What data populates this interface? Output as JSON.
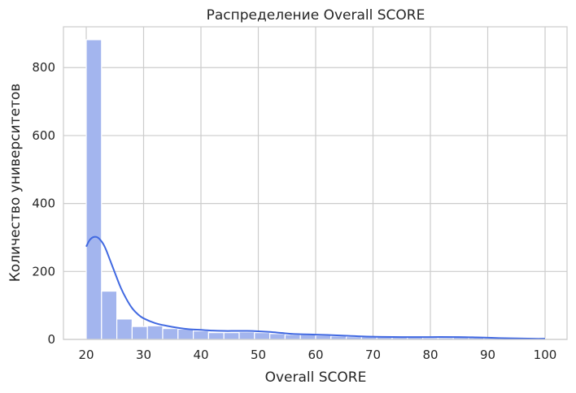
{
  "chart_data": {
    "type": "bar",
    "subtype": "histogram-with-kde",
    "title": "Распределение Overall SCORE",
    "xlabel": "Overall SCORE",
    "ylabel": "Количество университетов",
    "xlim": [
      20,
      100
    ],
    "ylim": [
      0,
      920
    ],
    "grid": true,
    "x_ticks": [
      20,
      30,
      40,
      50,
      60,
      70,
      80,
      90,
      100
    ],
    "y_ticks": [
      0,
      200,
      400,
      600,
      800
    ],
    "bin_width": 2.667,
    "bins": [
      {
        "start": 20.0,
        "end": 22.667,
        "count": 882
      },
      {
        "start": 22.667,
        "end": 25.333,
        "count": 142
      },
      {
        "start": 25.333,
        "end": 28.0,
        "count": 60
      },
      {
        "start": 28.0,
        "end": 30.667,
        "count": 38
      },
      {
        "start": 30.667,
        "end": 33.333,
        "count": 40
      },
      {
        "start": 33.333,
        "end": 36.0,
        "count": 32
      },
      {
        "start": 36.0,
        "end": 38.667,
        "count": 30
      },
      {
        "start": 38.667,
        "end": 41.333,
        "count": 25
      },
      {
        "start": 41.333,
        "end": 44.0,
        "count": 20
      },
      {
        "start": 44.0,
        "end": 46.667,
        "count": 20
      },
      {
        "start": 46.667,
        "end": 49.333,
        "count": 22
      },
      {
        "start": 49.333,
        "end": 52.0,
        "count": 20
      },
      {
        "start": 52.0,
        "end": 54.667,
        "count": 17
      },
      {
        "start": 54.667,
        "end": 57.333,
        "count": 14
      },
      {
        "start": 57.333,
        "end": 60.0,
        "count": 14
      },
      {
        "start": 60.0,
        "end": 62.667,
        "count": 12
      },
      {
        "start": 62.667,
        "end": 65.333,
        "count": 10
      },
      {
        "start": 65.333,
        "end": 68.0,
        "count": 8
      },
      {
        "start": 68.0,
        "end": 70.667,
        "count": 8
      },
      {
        "start": 70.667,
        "end": 73.333,
        "count": 7
      },
      {
        "start": 73.333,
        "end": 76.0,
        "count": 6
      },
      {
        "start": 76.0,
        "end": 78.667,
        "count": 6
      },
      {
        "start": 78.667,
        "end": 81.333,
        "count": 5
      },
      {
        "start": 81.333,
        "end": 84.0,
        "count": 5
      },
      {
        "start": 84.0,
        "end": 86.667,
        "count": 6
      },
      {
        "start": 86.667,
        "end": 89.333,
        "count": 5
      },
      {
        "start": 89.333,
        "end": 92.0,
        "count": 4
      },
      {
        "start": 92.0,
        "end": 94.667,
        "count": 3
      },
      {
        "start": 94.667,
        "end": 97.333,
        "count": 3
      },
      {
        "start": 97.333,
        "end": 100.0,
        "count": 3
      }
    ],
    "kde": {
      "x": [
        20,
        20.5,
        21,
        21.5,
        22,
        22.5,
        23,
        23.5,
        24,
        25,
        26,
        27,
        28,
        29,
        30,
        32,
        34,
        36,
        38,
        40,
        42,
        44,
        46,
        48,
        50,
        52,
        54,
        56,
        58,
        60,
        62,
        65,
        70,
        75,
        80,
        85,
        88,
        90,
        92,
        95,
        98,
        100
      ],
      "y": [
        273,
        290,
        299,
        302,
        300,
        292,
        280,
        262,
        240,
        196,
        153,
        119,
        92,
        74,
        62,
        48,
        40,
        34,
        30,
        28,
        26,
        25,
        25,
        25,
        24,
        22,
        19,
        16,
        15,
        14,
        13,
        11,
        8,
        7,
        7,
        7,
        6,
        5,
        4,
        3,
        2,
        2
      ]
    },
    "colors": {
      "bar_fill": "#a3b5ee",
      "bar_edge": "#ffffff",
      "kde_line": "#4169e1",
      "grid": "#cccccc",
      "spine": "#cccccc",
      "text": "#262626"
    }
  }
}
